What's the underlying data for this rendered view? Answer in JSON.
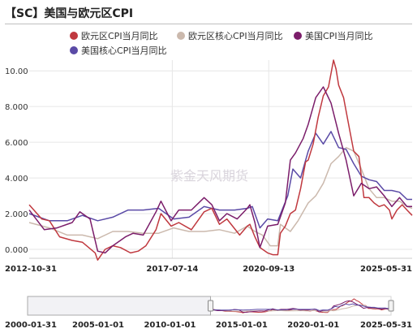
{
  "title": "【SC】美国与欧元区CPI",
  "watermark": "紫金天风期货",
  "colors": {
    "eu_cpi": "#c0393f",
    "eu_core": "#cbb9ad",
    "us_cpi": "#7b1d6a",
    "us_core": "#5a4aa6",
    "grid": "#e6e6e6",
    "navigator_fill": "#e9e9ef"
  },
  "navigator": {
    "labels": [
      "2000-01-31",
      "2005-01-01",
      "2010-01-01",
      "2015-01-01",
      "2020-01-01",
      "2025-05-31"
    ]
  },
  "chart_data": {
    "type": "line",
    "title": "【SC】美国与欧元区CPI",
    "xlabel": "",
    "ylabel": "",
    "ylim": [
      -0.5,
      10.6
    ],
    "x_range": [
      "2012-10-31",
      "2025-05-31"
    ],
    "x_tick_labels": [
      "2012-10-31",
      "2017-07-14",
      "2020-09-13",
      "2025-05-31"
    ],
    "y_tick_labels": [
      "0.000",
      "2.000",
      "4.000",
      "6.000",
      "8.000",
      "10.00"
    ],
    "legend_position": "top",
    "grid": true,
    "series": [
      {
        "name": "欧元区CPI当月同比",
        "color_key": "eu_cpi",
        "points": [
          [
            "2012-10-31",
            2.5
          ],
          [
            "2013-03-31",
            1.7
          ],
          [
            "2013-06-30",
            1.6
          ],
          [
            "2013-10-31",
            0.7
          ],
          [
            "2014-03-31",
            0.5
          ],
          [
            "2014-07-31",
            0.4
          ],
          [
            "2014-12-31",
            -0.2
          ],
          [
            "2015-01-31",
            -0.6
          ],
          [
            "2015-04-30",
            0.0
          ],
          [
            "2015-07-31",
            0.2
          ],
          [
            "2015-10-31",
            0.1
          ],
          [
            "2016-02-29",
            -0.2
          ],
          [
            "2016-05-31",
            -0.1
          ],
          [
            "2016-08-31",
            0.2
          ],
          [
            "2016-12-31",
            1.1
          ],
          [
            "2017-02-28",
            2.0
          ],
          [
            "2017-06-30",
            1.3
          ],
          [
            "2017-09-30",
            1.5
          ],
          [
            "2018-02-28",
            1.1
          ],
          [
            "2018-07-31",
            2.1
          ],
          [
            "2018-10-31",
            2.3
          ],
          [
            "2019-01-31",
            1.4
          ],
          [
            "2019-04-30",
            1.7
          ],
          [
            "2019-09-30",
            0.8
          ],
          [
            "2019-12-31",
            1.3
          ],
          [
            "2020-01-31",
            1.4
          ],
          [
            "2020-03-31",
            0.7
          ],
          [
            "2020-05-31",
            0.1
          ],
          [
            "2020-08-31",
            -0.2
          ],
          [
            "2020-10-31",
            -0.3
          ],
          [
            "2020-12-31",
            -0.3
          ],
          [
            "2021-01-31",
            0.9
          ],
          [
            "2021-03-31",
            1.3
          ],
          [
            "2021-05-31",
            2.0
          ],
          [
            "2021-07-31",
            2.2
          ],
          [
            "2021-09-30",
            3.4
          ],
          [
            "2021-11-30",
            4.9
          ],
          [
            "2021-12-31",
            5.0
          ],
          [
            "2022-02-28",
            5.9
          ],
          [
            "2022-04-30",
            7.4
          ],
          [
            "2022-06-30",
            8.6
          ],
          [
            "2022-08-31",
            9.1
          ],
          [
            "2022-10-31",
            10.6
          ],
          [
            "2022-11-30",
            10.1
          ],
          [
            "2022-12-31",
            9.2
          ],
          [
            "2023-02-28",
            8.5
          ],
          [
            "2023-04-30",
            7.0
          ],
          [
            "2023-06-30",
            5.5
          ],
          [
            "2023-08-31",
            5.2
          ],
          [
            "2023-10-31",
            2.9
          ],
          [
            "2023-12-31",
            2.9
          ],
          [
            "2024-02-29",
            2.6
          ],
          [
            "2024-04-30",
            2.4
          ],
          [
            "2024-06-30",
            2.5
          ],
          [
            "2024-08-31",
            2.2
          ],
          [
            "2024-09-30",
            1.7
          ],
          [
            "2024-11-30",
            2.2
          ],
          [
            "2025-01-31",
            2.5
          ],
          [
            "2025-03-31",
            2.2
          ],
          [
            "2025-05-31",
            1.9
          ]
        ]
      },
      {
        "name": "欧元区核心CPI当月同比",
        "color_key": "eu_core",
        "points": [
          [
            "2012-10-31",
            1.5
          ],
          [
            "2013-06-30",
            1.2
          ],
          [
            "2014-01-31",
            0.8
          ],
          [
            "2014-07-31",
            0.8
          ],
          [
            "2015-01-31",
            0.6
          ],
          [
            "2015-07-31",
            1.0
          ],
          [
            "2016-01-31",
            1.0
          ],
          [
            "2016-07-31",
            0.9
          ],
          [
            "2017-01-31",
            0.9
          ],
          [
            "2017-07-31",
            1.2
          ],
          [
            "2018-01-31",
            1.0
          ],
          [
            "2018-07-31",
            1.0
          ],
          [
            "2019-01-31",
            1.1
          ],
          [
            "2019-07-31",
            0.9
          ],
          [
            "2019-12-31",
            1.3
          ],
          [
            "2020-03-31",
            1.0
          ],
          [
            "2020-06-30",
            0.8
          ],
          [
            "2020-09-30",
            0.2
          ],
          [
            "2020-12-31",
            0.2
          ],
          [
            "2021-01-31",
            1.4
          ],
          [
            "2021-05-31",
            1.0
          ],
          [
            "2021-08-31",
            1.6
          ],
          [
            "2021-12-31",
            2.6
          ],
          [
            "2022-03-31",
            3.0
          ],
          [
            "2022-06-30",
            3.7
          ],
          [
            "2022-09-30",
            4.8
          ],
          [
            "2022-12-31",
            5.2
          ],
          [
            "2023-03-31",
            5.7
          ],
          [
            "2023-06-30",
            5.5
          ],
          [
            "2023-09-30",
            4.5
          ],
          [
            "2023-12-31",
            3.4
          ],
          [
            "2024-03-31",
            2.9
          ],
          [
            "2024-06-30",
            2.9
          ],
          [
            "2024-09-30",
            2.7
          ],
          [
            "2024-12-31",
            2.7
          ],
          [
            "2025-03-31",
            2.4
          ],
          [
            "2025-05-31",
            2.3
          ]
        ]
      },
      {
        "name": "美国CPI当月同比",
        "color_key": "us_cpi",
        "points": [
          [
            "2012-10-31",
            2.2
          ],
          [
            "2013-04-30",
            1.1
          ],
          [
            "2013-09-30",
            1.2
          ],
          [
            "2014-03-31",
            1.5
          ],
          [
            "2014-06-30",
            2.1
          ],
          [
            "2014-10-31",
            1.7
          ],
          [
            "2015-01-31",
            -0.1
          ],
          [
            "2015-04-30",
            -0.2
          ],
          [
            "2015-07-31",
            0.2
          ],
          [
            "2015-12-31",
            0.7
          ],
          [
            "2016-03-31",
            0.9
          ],
          [
            "2016-07-31",
            0.8
          ],
          [
            "2016-12-31",
            2.1
          ],
          [
            "2017-02-28",
            2.7
          ],
          [
            "2017-06-30",
            1.6
          ],
          [
            "2017-09-30",
            2.2
          ],
          [
            "2018-02-28",
            2.2
          ],
          [
            "2018-07-31",
            2.9
          ],
          [
            "2018-10-31",
            2.5
          ],
          [
            "2019-01-31",
            1.6
          ],
          [
            "2019-04-30",
            2.0
          ],
          [
            "2019-08-31",
            1.7
          ],
          [
            "2019-12-31",
            2.3
          ],
          [
            "2020-01-31",
            2.5
          ],
          [
            "2020-03-31",
            1.5
          ],
          [
            "2020-05-31",
            0.1
          ],
          [
            "2020-08-31",
            1.3
          ],
          [
            "2020-12-31",
            1.4
          ],
          [
            "2021-03-31",
            2.6
          ],
          [
            "2021-05-31",
            5.0
          ],
          [
            "2021-07-31",
            5.4
          ],
          [
            "2021-10-31",
            6.2
          ],
          [
            "2021-12-31",
            7.0
          ],
          [
            "2022-03-31",
            8.5
          ],
          [
            "2022-06-30",
            9.1
          ],
          [
            "2022-09-30",
            8.2
          ],
          [
            "2022-12-31",
            6.5
          ],
          [
            "2023-03-31",
            5.0
          ],
          [
            "2023-06-30",
            3.0
          ],
          [
            "2023-09-30",
            3.7
          ],
          [
            "2023-12-31",
            3.4
          ],
          [
            "2024-03-31",
            3.5
          ],
          [
            "2024-06-30",
            3.0
          ],
          [
            "2024-09-30",
            2.4
          ],
          [
            "2024-12-31",
            2.9
          ],
          [
            "2025-03-31",
            2.4
          ],
          [
            "2025-05-31",
            2.4
          ]
        ]
      },
      {
        "name": "美国核心CPI当月同比",
        "color_key": "us_core",
        "points": [
          [
            "2012-10-31",
            2.0
          ],
          [
            "2013-06-30",
            1.6
          ],
          [
            "2014-01-31",
            1.6
          ],
          [
            "2014-07-31",
            1.9
          ],
          [
            "2015-01-31",
            1.6
          ],
          [
            "2015-07-31",
            1.8
          ],
          [
            "2016-01-31",
            2.2
          ],
          [
            "2016-07-31",
            2.2
          ],
          [
            "2017-01-31",
            2.3
          ],
          [
            "2017-07-31",
            1.7
          ],
          [
            "2018-01-31",
            1.8
          ],
          [
            "2018-07-31",
            2.4
          ],
          [
            "2019-01-31",
            2.2
          ],
          [
            "2019-07-31",
            2.2
          ],
          [
            "2019-12-31",
            2.3
          ],
          [
            "2020-02-29",
            2.4
          ],
          [
            "2020-05-31",
            1.2
          ],
          [
            "2020-08-31",
            1.7
          ],
          [
            "2020-12-31",
            1.6
          ],
          [
            "2021-04-30",
            3.0
          ],
          [
            "2021-06-30",
            4.5
          ],
          [
            "2021-09-30",
            4.0
          ],
          [
            "2021-12-31",
            5.5
          ],
          [
            "2022-03-31",
            6.5
          ],
          [
            "2022-06-30",
            5.9
          ],
          [
            "2022-09-30",
            6.6
          ],
          [
            "2022-12-31",
            5.7
          ],
          [
            "2023-03-31",
            5.6
          ],
          [
            "2023-06-30",
            4.8
          ],
          [
            "2023-09-30",
            4.1
          ],
          [
            "2023-12-31",
            3.9
          ],
          [
            "2024-03-31",
            3.8
          ],
          [
            "2024-06-30",
            3.3
          ],
          [
            "2024-09-30",
            3.3
          ],
          [
            "2024-12-31",
            3.2
          ],
          [
            "2025-03-31",
            2.8
          ],
          [
            "2025-05-31",
            2.8
          ]
        ]
      }
    ]
  }
}
